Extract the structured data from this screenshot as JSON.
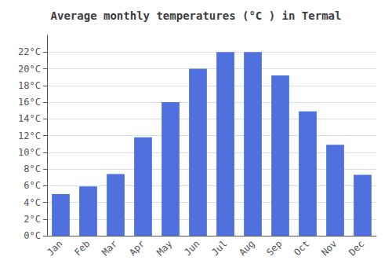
{
  "chart_data": {
    "type": "bar",
    "title": "Average monthly temperatures (°C ) in Termal",
    "categories": [
      "Jan",
      "Feb",
      "Mar",
      "Apr",
      "May",
      "Jun",
      "Jul",
      "Aug",
      "Sep",
      "Oct",
      "Nov",
      "Dec"
    ],
    "values": [
      5.0,
      5.9,
      7.4,
      11.8,
      16.0,
      20.0,
      22.0,
      22.0,
      19.2,
      14.9,
      10.9,
      7.3
    ],
    "ylim": [
      0,
      24
    ],
    "yticks": [
      {
        "value": 0,
        "label": "0°C"
      },
      {
        "value": 2,
        "label": "2°C"
      },
      {
        "value": 4,
        "label": "4°C"
      },
      {
        "value": 6,
        "label": "6°C"
      },
      {
        "value": 8,
        "label": "8°C"
      },
      {
        "value": 10,
        "label": "10°C"
      },
      {
        "value": 12,
        "label": "12°C"
      },
      {
        "value": 14,
        "label": "14°C"
      },
      {
        "value": 16,
        "label": "16°C"
      },
      {
        "value": 18,
        "label": "18°C"
      },
      {
        "value": 20,
        "label": "20°C"
      },
      {
        "value": 22,
        "label": "22°C"
      }
    ],
    "grid": true
  }
}
